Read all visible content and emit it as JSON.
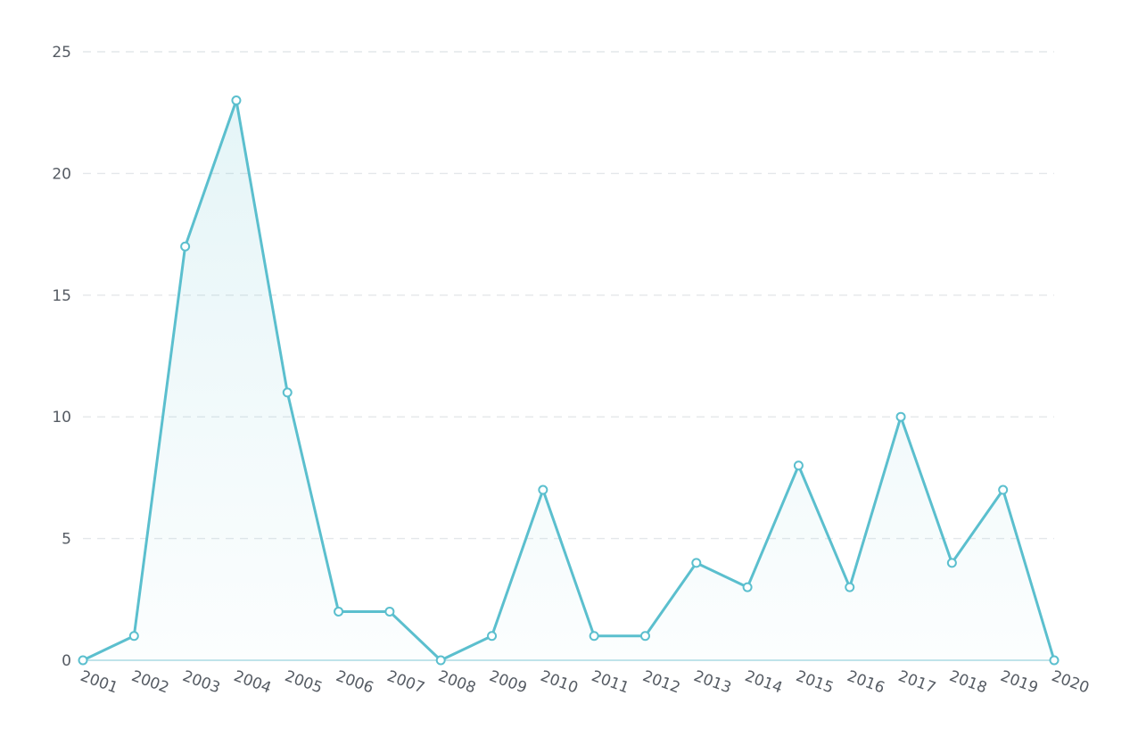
{
  "chart_data": {
    "type": "area",
    "title": "",
    "xlabel": "",
    "ylabel": "",
    "categories": [
      "2001",
      "2002",
      "2003",
      "2004",
      "2005",
      "2006",
      "2007",
      "2008",
      "2009",
      "2010",
      "2011",
      "2012",
      "2013",
      "2014",
      "2015",
      "2016",
      "2017",
      "2018",
      "2019",
      "2020"
    ],
    "values": [
      0,
      1,
      17,
      23,
      11,
      2,
      2,
      0,
      1,
      7,
      1,
      1,
      4,
      3,
      8,
      3,
      10,
      4,
      7,
      0
    ],
    "ylim": [
      0,
      25
    ],
    "yticks": [
      "0",
      "5",
      "10",
      "15",
      "20",
      "25"
    ],
    "grid": true,
    "legend": "none",
    "colors": {
      "line": "#5bbfce",
      "fill": "#5bbfce",
      "grid": "#e4e7ea",
      "axis": "#bfe3ea",
      "text": "#555b63"
    }
  }
}
